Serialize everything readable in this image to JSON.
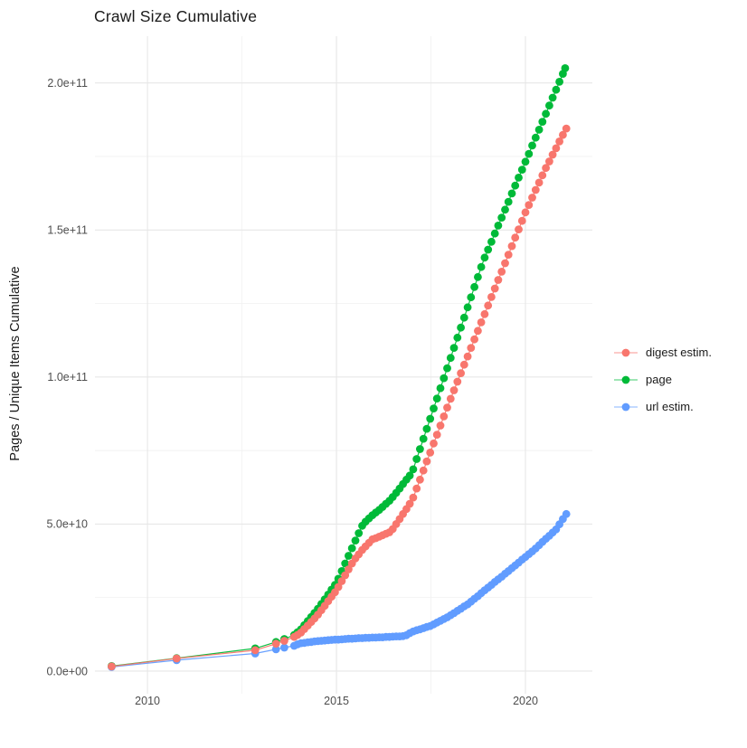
{
  "chart": {
    "title": "Crawl Size Cumulative",
    "ylabel": "Pages / Unique Items Cumulative"
  },
  "legend": {
    "items": [
      {
        "label": "digest estim."
      },
      {
        "label": "page"
      },
      {
        "label": "url estim."
      }
    ]
  },
  "chart_data": {
    "type": "scatter",
    "title": "Crawl Size Cumulative",
    "xlabel": "",
    "ylabel": "Pages / Unique Items Cumulative",
    "grid": "major-and-minor",
    "legend_position": "right",
    "background": "#ffffff",
    "major_grid_color": "#e7e7e7",
    "minor_grid_color": "#f2f2f2",
    "tick_label_color": "#4d4d4d",
    "xlim": [
      2008.61,
      2021.77
    ],
    "ylim_e9": [
      -7.7,
      215.9
    ],
    "x_ticks": [
      {
        "label": "2010",
        "value": 2010
      },
      {
        "label": "2015",
        "value": 2015
      },
      {
        "label": "2020",
        "value": 2020
      }
    ],
    "x_minor_ticks": [
      2012.5,
      2017.5
    ],
    "y_ticks_e9": [
      {
        "label": "0.0e+00",
        "value": 0
      },
      {
        "label": "5.0e+10",
        "value": 50
      },
      {
        "label": "1.0e+11",
        "value": 100
      },
      {
        "label": "1.5e+11",
        "value": 150
      },
      {
        "label": "2.0e+11",
        "value": 200
      }
    ],
    "y_minor_ticks_e9": [
      25,
      75,
      125,
      175
    ],
    "values_unit": "1e9 pages / unique items",
    "series": [
      {
        "name": "digest estim.",
        "color": "#F8766D",
        "points": [
          [
            2009.05,
            1.6
          ],
          [
            2010.77,
            4.3
          ],
          [
            2012.85,
            7.1
          ],
          [
            2013.4,
            9.3
          ],
          [
            2013.62,
            10.3
          ],
          [
            2013.88,
            11.6
          ],
          [
            2013.97,
            12.3
          ],
          [
            2014.06,
            13.1
          ],
          [
            2014.15,
            14.3
          ],
          [
            2014.24,
            15.5
          ],
          [
            2014.33,
            16.7
          ],
          [
            2014.42,
            17.9
          ],
          [
            2014.51,
            19.2
          ],
          [
            2014.6,
            20.7
          ],
          [
            2014.69,
            22.2
          ],
          [
            2014.78,
            23.8
          ],
          [
            2014.87,
            25.3
          ],
          [
            2014.96,
            26.8
          ],
          [
            2015.05,
            28.6
          ],
          [
            2015.14,
            30.6
          ],
          [
            2015.23,
            32.6
          ],
          [
            2015.32,
            34.6
          ],
          [
            2015.41,
            36.6
          ],
          [
            2015.5,
            38.3
          ],
          [
            2015.59,
            39.7
          ],
          [
            2015.68,
            41.2
          ],
          [
            2015.77,
            42.4
          ],
          [
            2015.86,
            43.6
          ],
          [
            2015.95,
            44.8
          ],
          [
            2016.04,
            45.2
          ],
          [
            2016.13,
            45.7
          ],
          [
            2016.22,
            46.2
          ],
          [
            2016.31,
            46.7
          ],
          [
            2016.4,
            47.2
          ],
          [
            2016.49,
            48.3
          ],
          [
            2016.58,
            50.0
          ],
          [
            2016.67,
            51.7
          ],
          [
            2016.76,
            53.4
          ],
          [
            2016.85,
            55.1
          ],
          [
            2016.94,
            56.9
          ],
          [
            2017.03,
            59.0
          ],
          [
            2017.12,
            62.1
          ],
          [
            2017.21,
            65.1
          ],
          [
            2017.3,
            68.2
          ],
          [
            2017.39,
            71.3
          ],
          [
            2017.48,
            74.3
          ],
          [
            2017.57,
            77.4
          ],
          [
            2017.66,
            80.4
          ],
          [
            2017.75,
            83.5
          ],
          [
            2017.84,
            86.6
          ],
          [
            2017.93,
            89.6
          ],
          [
            2018.02,
            92.6
          ],
          [
            2018.11,
            95.5
          ],
          [
            2018.2,
            98.4
          ],
          [
            2018.29,
            101.3
          ],
          [
            2018.38,
            104.2
          ],
          [
            2018.47,
            107.0
          ],
          [
            2018.56,
            109.9
          ],
          [
            2018.65,
            112.8
          ],
          [
            2018.74,
            115.7
          ],
          [
            2018.83,
            118.6
          ],
          [
            2018.92,
            121.4
          ],
          [
            2019.01,
            124.3
          ],
          [
            2019.1,
            127.2
          ],
          [
            2019.19,
            130.1
          ],
          [
            2019.28,
            133.0
          ],
          [
            2019.37,
            135.8
          ],
          [
            2019.46,
            138.7
          ],
          [
            2019.55,
            141.6
          ],
          [
            2019.64,
            144.5
          ],
          [
            2019.73,
            147.4
          ],
          [
            2019.82,
            150.2
          ],
          [
            2019.91,
            153.1
          ],
          [
            2020.0,
            156.0
          ],
          [
            2020.09,
            158.5
          ],
          [
            2020.18,
            161.0
          ],
          [
            2020.27,
            163.6
          ],
          [
            2020.36,
            166.1
          ],
          [
            2020.45,
            168.6
          ],
          [
            2020.54,
            171.1
          ],
          [
            2020.63,
            173.3
          ],
          [
            2020.72,
            175.6
          ],
          [
            2020.81,
            177.8
          ],
          [
            2020.9,
            180.1
          ],
          [
            2020.99,
            182.3
          ],
          [
            2021.08,
            184.5
          ]
        ]
      },
      {
        "name": "page",
        "color": "#00BA38",
        "points": [
          [
            2009.05,
            1.7
          ],
          [
            2010.77,
            4.4
          ],
          [
            2012.85,
            7.7
          ],
          [
            2013.4,
            9.9
          ],
          [
            2013.62,
            10.9
          ],
          [
            2013.88,
            12.3
          ],
          [
            2013.97,
            13.2
          ],
          [
            2014.06,
            14.2
          ],
          [
            2014.15,
            15.6
          ],
          [
            2014.24,
            17.0
          ],
          [
            2014.33,
            18.4
          ],
          [
            2014.42,
            19.8
          ],
          [
            2014.51,
            21.2
          ],
          [
            2014.6,
            22.8
          ],
          [
            2014.69,
            24.4
          ],
          [
            2014.78,
            26.0
          ],
          [
            2014.87,
            27.7
          ],
          [
            2014.96,
            29.3
          ],
          [
            2015.05,
            31.4
          ],
          [
            2015.14,
            34.0
          ],
          [
            2015.23,
            36.6
          ],
          [
            2015.32,
            39.2
          ],
          [
            2015.41,
            41.8
          ],
          [
            2015.5,
            44.4
          ],
          [
            2015.59,
            46.9
          ],
          [
            2015.68,
            49.4
          ],
          [
            2015.77,
            50.8
          ],
          [
            2015.86,
            51.9
          ],
          [
            2015.95,
            53.0
          ],
          [
            2016.04,
            53.9
          ],
          [
            2016.13,
            54.8
          ],
          [
            2016.22,
            55.8
          ],
          [
            2016.31,
            56.9
          ],
          [
            2016.4,
            57.9
          ],
          [
            2016.49,
            59.2
          ],
          [
            2016.58,
            60.6
          ],
          [
            2016.67,
            62.1
          ],
          [
            2016.76,
            63.6
          ],
          [
            2016.85,
            65.1
          ],
          [
            2016.94,
            66.5
          ],
          [
            2017.03,
            68.6
          ],
          [
            2017.12,
            72.1
          ],
          [
            2017.21,
            75.5
          ],
          [
            2017.3,
            79.0
          ],
          [
            2017.39,
            82.4
          ],
          [
            2017.48,
            85.8
          ],
          [
            2017.57,
            89.3
          ],
          [
            2017.66,
            92.7
          ],
          [
            2017.75,
            96.2
          ],
          [
            2017.84,
            99.6
          ],
          [
            2017.93,
            103.0
          ],
          [
            2018.02,
            106.5
          ],
          [
            2018.11,
            109.9
          ],
          [
            2018.2,
            113.4
          ],
          [
            2018.29,
            116.8
          ],
          [
            2018.38,
            120.2
          ],
          [
            2018.47,
            123.7
          ],
          [
            2018.56,
            127.1
          ],
          [
            2018.65,
            130.6
          ],
          [
            2018.74,
            134.0
          ],
          [
            2018.83,
            137.4
          ],
          [
            2018.92,
            140.6
          ],
          [
            2019.01,
            143.3
          ],
          [
            2019.1,
            146.0
          ],
          [
            2019.19,
            148.8
          ],
          [
            2019.28,
            151.5
          ],
          [
            2019.37,
            154.2
          ],
          [
            2019.46,
            156.9
          ],
          [
            2019.55,
            159.6
          ],
          [
            2019.64,
            162.4
          ],
          [
            2019.73,
            165.1
          ],
          [
            2019.82,
            167.8
          ],
          [
            2019.91,
            170.5
          ],
          [
            2020.0,
            173.2
          ],
          [
            2020.09,
            175.9
          ],
          [
            2020.18,
            178.7
          ],
          [
            2020.27,
            181.4
          ],
          [
            2020.36,
            184.1
          ],
          [
            2020.45,
            186.8
          ],
          [
            2020.54,
            189.5
          ],
          [
            2020.63,
            192.3
          ],
          [
            2020.72,
            195.0
          ],
          [
            2020.81,
            197.7
          ],
          [
            2020.9,
            200.4
          ],
          [
            2020.99,
            203.1
          ],
          [
            2021.05,
            205.0
          ]
        ]
      },
      {
        "name": "url estim.",
        "color": "#619CFF",
        "points": [
          [
            2009.05,
            1.4
          ],
          [
            2010.77,
            3.7
          ],
          [
            2012.85,
            6.0
          ],
          [
            2013.4,
            7.4
          ],
          [
            2013.62,
            8.0
          ],
          [
            2013.88,
            8.6
          ],
          [
            2013.97,
            9.1
          ],
          [
            2014.06,
            9.5
          ],
          [
            2014.15,
            9.6
          ],
          [
            2014.24,
            9.8
          ],
          [
            2014.33,
            9.9
          ],
          [
            2014.42,
            10.1
          ],
          [
            2014.51,
            10.2
          ],
          [
            2014.6,
            10.3
          ],
          [
            2014.69,
            10.4
          ],
          [
            2014.78,
            10.5
          ],
          [
            2014.87,
            10.6
          ],
          [
            2014.96,
            10.7
          ],
          [
            2015.05,
            10.7
          ],
          [
            2015.14,
            10.8
          ],
          [
            2015.23,
            10.9
          ],
          [
            2015.32,
            11.0
          ],
          [
            2015.41,
            11.0
          ],
          [
            2015.5,
            11.1
          ],
          [
            2015.59,
            11.2
          ],
          [
            2015.68,
            11.2
          ],
          [
            2015.77,
            11.3
          ],
          [
            2015.86,
            11.3
          ],
          [
            2015.95,
            11.4
          ],
          [
            2016.04,
            11.4
          ],
          [
            2016.13,
            11.5
          ],
          [
            2016.22,
            11.5
          ],
          [
            2016.31,
            11.6
          ],
          [
            2016.4,
            11.6
          ],
          [
            2016.49,
            11.7
          ],
          [
            2016.58,
            11.8
          ],
          [
            2016.67,
            11.8
          ],
          [
            2016.76,
            11.9
          ],
          [
            2016.85,
            12.2
          ],
          [
            2016.94,
            12.9
          ],
          [
            2017.03,
            13.5
          ],
          [
            2017.12,
            13.9
          ],
          [
            2017.21,
            14.2
          ],
          [
            2017.3,
            14.6
          ],
          [
            2017.39,
            15.0
          ],
          [
            2017.48,
            15.3
          ],
          [
            2017.57,
            15.9
          ],
          [
            2017.66,
            16.5
          ],
          [
            2017.75,
            17.1
          ],
          [
            2017.84,
            17.7
          ],
          [
            2017.93,
            18.3
          ],
          [
            2018.02,
            19.0
          ],
          [
            2018.11,
            19.7
          ],
          [
            2018.2,
            20.5
          ],
          [
            2018.29,
            21.2
          ],
          [
            2018.38,
            22.0
          ],
          [
            2018.47,
            22.7
          ],
          [
            2018.56,
            23.6
          ],
          [
            2018.65,
            24.6
          ],
          [
            2018.74,
            25.5
          ],
          [
            2018.83,
            26.5
          ],
          [
            2018.92,
            27.5
          ],
          [
            2019.01,
            28.4
          ],
          [
            2019.1,
            29.3
          ],
          [
            2019.19,
            30.3
          ],
          [
            2019.28,
            31.2
          ],
          [
            2019.37,
            32.1
          ],
          [
            2019.46,
            33.1
          ],
          [
            2019.55,
            34.0
          ],
          [
            2019.64,
            35.0
          ],
          [
            2019.73,
            35.9
          ],
          [
            2019.82,
            36.9
          ],
          [
            2019.91,
            37.9
          ],
          [
            2020.0,
            38.8
          ],
          [
            2020.09,
            39.8
          ],
          [
            2020.18,
            40.7
          ],
          [
            2020.27,
            41.7
          ],
          [
            2020.36,
            42.8
          ],
          [
            2020.45,
            43.9
          ],
          [
            2020.54,
            45.0
          ],
          [
            2020.63,
            46.0
          ],
          [
            2020.72,
            47.1
          ],
          [
            2020.81,
            48.2
          ],
          [
            2020.9,
            49.9
          ],
          [
            2020.99,
            51.7
          ],
          [
            2021.08,
            53.4
          ]
        ]
      }
    ]
  }
}
